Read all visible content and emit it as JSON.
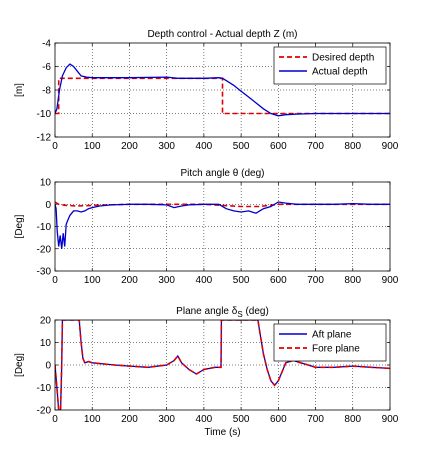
{
  "chart_data": [
    {
      "type": "line",
      "title": "Depth control - Actual depth Z (m)",
      "xlabel": "",
      "ylabel": "[m]",
      "xlim": [
        0,
        900
      ],
      "ylim": [
        -12,
        -4
      ],
      "xticks": [
        0,
        100,
        200,
        300,
        400,
        500,
        600,
        700,
        800,
        900
      ],
      "yticks": [
        -12,
        -10,
        -8,
        -6,
        -4
      ],
      "grid": true,
      "legend": "top-right",
      "series": [
        {
          "name": "Desired depth",
          "color": "#e00000",
          "style": "dashed",
          "x": [
            0,
            10,
            10,
            450,
            450,
            900
          ],
          "y": [
            -10,
            -10,
            -7,
            -7,
            -10,
            -10
          ]
        },
        {
          "name": "Actual depth",
          "color": "#0000cc",
          "style": "solid",
          "x": [
            0,
            5,
            12,
            20,
            30,
            40,
            50,
            60,
            70,
            85,
            100,
            200,
            300,
            330,
            400,
            440,
            450,
            460,
            480,
            500,
            520,
            540,
            560,
            580,
            600,
            620,
            650,
            700,
            800,
            900
          ],
          "y": [
            -10,
            -9.6,
            -8,
            -6.8,
            -6.1,
            -5.8,
            -6,
            -6.4,
            -6.8,
            -6.9,
            -6.95,
            -6.95,
            -6.9,
            -7,
            -7,
            -6.95,
            -7,
            -7.2,
            -7.6,
            -8.1,
            -8.6,
            -9.1,
            -9.6,
            -10,
            -10.2,
            -10.1,
            -10.05,
            -10,
            -10,
            -10
          ]
        }
      ]
    },
    {
      "type": "line",
      "title": "Pitch angle θ (deg)",
      "xlabel": "",
      "ylabel": "[Deg]",
      "xlim": [
        0,
        900
      ],
      "ylim": [
        -30,
        10
      ],
      "xticks": [
        0,
        100,
        200,
        300,
        400,
        500,
        600,
        700,
        800,
        900
      ],
      "yticks": [
        -30,
        -20,
        -10,
        0,
        10
      ],
      "grid": true,
      "series": [
        {
          "name": "",
          "color": "#e00000",
          "style": "dashed",
          "x": [
            0,
            10,
            30,
            60,
            100,
            200,
            300,
            400,
            450,
            500,
            550,
            600,
            700,
            800,
            900
          ],
          "y": [
            1,
            0,
            -0.5,
            -0.8,
            -0.5,
            0,
            0,
            0,
            -0.5,
            -1,
            -1,
            0,
            0,
            0,
            0
          ]
        },
        {
          "name": "",
          "color": "#0000cc",
          "style": "solid",
          "x": [
            0,
            3,
            6,
            10,
            14,
            18,
            22,
            26,
            30,
            35,
            40,
            50,
            60,
            70,
            80,
            90,
            100,
            120,
            150,
            200,
            250,
            300,
            320,
            340,
            360,
            400,
            440,
            460,
            480,
            500,
            520,
            540,
            560,
            580,
            600,
            620,
            650,
            700,
            750,
            800,
            850,
            900
          ],
          "y": [
            0,
            -2,
            -12,
            -19,
            -14,
            -20,
            -13,
            -19,
            -9,
            -7,
            -5,
            -3,
            -3,
            -3.5,
            -3,
            -2,
            -1.5,
            -0.8,
            -0.3,
            0,
            0,
            -0.3,
            -1.5,
            -0.8,
            -0.3,
            0,
            0,
            -2,
            -3,
            -3.5,
            -3,
            -4,
            -2,
            -1,
            1,
            0.5,
            0,
            0,
            0,
            0.3,
            0,
            0
          ]
        }
      ]
    },
    {
      "type": "line",
      "title": "Plane angle δ",
      "title_sub": "S",
      "title_tail": " (deg)",
      "xlabel": "Time (s)",
      "ylabel": "[Deg]",
      "xlim": [
        0,
        900
      ],
      "ylim": [
        -20,
        20
      ],
      "xticks": [
        0,
        100,
        200,
        300,
        400,
        500,
        600,
        700,
        800,
        900
      ],
      "yticks": [
        -20,
        -10,
        0,
        10,
        20
      ],
      "grid": true,
      "legend": "top-right",
      "series": [
        {
          "name": "Aft plane",
          "color": "#0000cc",
          "style": "solid",
          "x": [
            0,
            5,
            10,
            15,
            18,
            20,
            22,
            25,
            28,
            60,
            65,
            70,
            75,
            80,
            90,
            100,
            130,
            160,
            200,
            250,
            300,
            320,
            330,
            340,
            360,
            380,
            400,
            430,
            446,
            447,
            448,
            449,
            450,
            540,
            545,
            550,
            560,
            570,
            580,
            590,
            600,
            610,
            620,
            640,
            660,
            680,
            700,
            750,
            800,
            850,
            900
          ],
          "y": [
            0,
            -10,
            -20,
            -20,
            0,
            20,
            20,
            20,
            20,
            20,
            20,
            10,
            3,
            1,
            1.5,
            1,
            0.5,
            0,
            -0.5,
            -1,
            0,
            2,
            4,
            1,
            -2,
            -4,
            -2,
            -1,
            -1,
            20,
            20,
            20,
            20,
            20,
            20,
            15,
            5,
            -2,
            -7,
            -9,
            -7,
            -3,
            1,
            2,
            1,
            0,
            -1,
            -1,
            -0.5,
            -1,
            -1.5
          ]
        },
        {
          "name": "Fore plane",
          "color": "#e00000",
          "style": "dashed",
          "x": [
            0,
            5,
            10,
            15,
            18,
            20,
            22,
            25,
            28,
            60,
            65,
            70,
            75,
            80,
            90,
            100,
            130,
            160,
            200,
            250,
            300,
            320,
            330,
            340,
            360,
            380,
            400,
            430,
            446,
            447,
            448,
            449,
            450,
            540,
            545,
            550,
            560,
            570,
            580,
            590,
            600,
            610,
            620,
            640,
            660,
            680,
            700,
            750,
            800,
            850,
            900
          ],
          "y": [
            0,
            -10,
            -20,
            -20,
            0,
            20,
            20,
            20,
            20,
            20,
            20,
            10,
            3,
            1,
            1.5,
            1,
            0.5,
            0,
            -0.5,
            -1,
            0,
            2,
            4,
            1,
            -2,
            -4,
            -2,
            -1,
            -1,
            20,
            20,
            20,
            20,
            20,
            20,
            15,
            5,
            -2,
            -7,
            -9,
            -7,
            -3,
            1,
            2,
            1,
            0,
            -1,
            -1,
            -0.5,
            -1,
            -1.5
          ]
        }
      ]
    }
  ]
}
